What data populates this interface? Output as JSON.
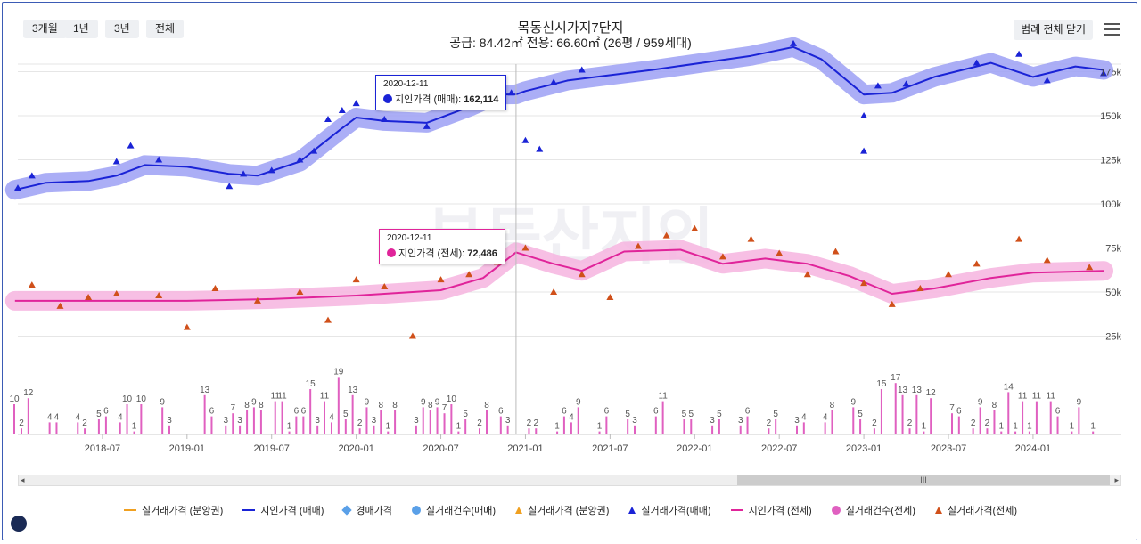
{
  "range_buttons": [
    "3개월",
    "1년",
    "3년",
    "전체"
  ],
  "title": {
    "main": "목동신시가지7단지",
    "sub": "공급: 84.42㎡ 전용: 66.60㎡ (26평 / 959세대)"
  },
  "legend_close_label": "범례 전체 닫기",
  "watermark": "부동산지인",
  "tooltips": [
    {
      "date": "2020-12-11",
      "label": "지인가격 (매매):",
      "value": "162,114",
      "color": "#1a23d6"
    },
    {
      "date": "2020-12-11",
      "label": "지인가격 (전세):",
      "value": "72,486",
      "color": "#e0249a"
    }
  ],
  "legend": [
    {
      "label": "실거래가격 (분양권)",
      "marker": "line",
      "color": "#f0a020"
    },
    {
      "label": "지인가격 (매매)",
      "marker": "line",
      "color": "#1a23d6"
    },
    {
      "label": "경매가격",
      "marker": "diamond",
      "color": "#5aa0e8"
    },
    {
      "label": "실거래건수(매매)",
      "marker": "circle",
      "color": "#5aa0e8"
    },
    {
      "label": "실거래가격 (분양권)",
      "marker": "triangle",
      "color": "#f0a020"
    },
    {
      "label": "실거래가격(매매)",
      "marker": "triangle",
      "color": "#1a23d6"
    },
    {
      "label": "지인가격 (전세)",
      "marker": "line",
      "color": "#e0249a"
    },
    {
      "label": "실거래건수(전세)",
      "marker": "circle",
      "color": "#e060c0"
    },
    {
      "label": "실거래가격(전세)",
      "marker": "triangle",
      "color": "#d0501a"
    }
  ],
  "chart_data": {
    "type": "line",
    "x_start": "2018-01",
    "x_end": "2024-06",
    "x_ticks": [
      "2018-07",
      "2019-01",
      "2019-07",
      "2020-01",
      "2020-07",
      "2021-01",
      "2021-07",
      "2022-01",
      "2022-07",
      "2023-01",
      "2023-07",
      "2024-01"
    ],
    "y_ticks": [
      25,
      50,
      75,
      100,
      125,
      150,
      175
    ],
    "y_tick_labels": [
      "25k",
      "50k",
      "75k",
      "100k",
      "125k",
      "150k",
      "175k"
    ],
    "ylim": [
      0,
      195
    ],
    "series": [
      {
        "name": "지인가격 (매매)",
        "color": "#1a23d6",
        "points": [
          [
            "2017-12-25",
            108
          ],
          [
            "2018-03",
            112
          ],
          [
            "2018-06",
            113
          ],
          [
            "2018-08",
            116
          ],
          [
            "2018-10",
            122
          ],
          [
            "2019-01",
            121
          ],
          [
            "2019-04",
            117
          ],
          [
            "2019-06",
            116
          ],
          [
            "2019-09",
            124
          ],
          [
            "2019-12",
            143
          ],
          [
            "2020-01",
            149
          ],
          [
            "2020-03",
            147
          ],
          [
            "2020-06",
            146
          ],
          [
            "2020-09",
            155
          ],
          [
            "2020-11",
            162
          ],
          [
            "2020-12-11",
            162.1
          ],
          [
            "2021-01",
            164
          ],
          [
            "2021-04",
            170
          ],
          [
            "2021-10",
            176
          ],
          [
            "2022-05",
            184
          ],
          [
            "2022-08",
            189
          ],
          [
            "2022-10",
            182
          ],
          [
            "2023-01",
            162
          ],
          [
            "2023-03",
            163
          ],
          [
            "2023-06",
            172
          ],
          [
            "2023-10",
            180
          ],
          [
            "2024-01",
            172
          ],
          [
            "2024-04",
            178
          ],
          [
            "2024-06",
            176
          ]
        ]
      },
      {
        "name": "지인가격 (전세)",
        "color": "#e0249a",
        "points": [
          [
            "2017-12-25",
            45
          ],
          [
            "2018-06",
            45
          ],
          [
            "2019-01",
            45
          ],
          [
            "2019-07",
            46
          ],
          [
            "2020-01",
            48
          ],
          [
            "2020-07",
            51
          ],
          [
            "2020-10",
            58
          ],
          [
            "2020-12-11",
            72.5
          ],
          [
            "2021-03",
            66
          ],
          [
            "2021-05",
            62
          ],
          [
            "2021-08",
            73
          ],
          [
            "2021-12",
            74
          ],
          [
            "2022-03",
            66
          ],
          [
            "2022-06",
            69
          ],
          [
            "2022-09",
            66
          ],
          [
            "2022-12",
            59
          ],
          [
            "2023-03",
            49
          ],
          [
            "2023-06",
            52
          ],
          [
            "2023-10",
            58
          ],
          [
            "2024-01",
            61
          ],
          [
            "2024-06",
            62
          ]
        ]
      },
      {
        "name": "실거래가격(매매)",
        "color": "#1a23d6",
        "points": [
          [
            "2018-01",
            109
          ],
          [
            "2018-02",
            116
          ],
          [
            "2018-08",
            124
          ],
          [
            "2018-09",
            133
          ],
          [
            "2018-11",
            125
          ],
          [
            "2019-04",
            110
          ],
          [
            "2019-05",
            117
          ],
          [
            "2019-07",
            119
          ],
          [
            "2019-09",
            125
          ],
          [
            "2019-10",
            130
          ],
          [
            "2019-11",
            148
          ],
          [
            "2019-12",
            153
          ],
          [
            "2020-01",
            157
          ],
          [
            "2020-03",
            148
          ],
          [
            "2020-06",
            144
          ],
          [
            "2020-08",
            157
          ],
          [
            "2020-09",
            160
          ],
          [
            "2020-11",
            165
          ],
          [
            "2020-12",
            163
          ],
          [
            "2021-01",
            136
          ],
          [
            "2021-02",
            131
          ],
          [
            "2021-03",
            169
          ],
          [
            "2021-05",
            176
          ],
          [
            "2022-08",
            191
          ],
          [
            "2023-01",
            150
          ],
          [
            "2023-01",
            130
          ],
          [
            "2023-02",
            167
          ],
          [
            "2023-04",
            168
          ],
          [
            "2023-09",
            180
          ],
          [
            "2023-12",
            185
          ],
          [
            "2024-02",
            170
          ],
          [
            "2024-06",
            174
          ]
        ]
      },
      {
        "name": "실거래가격(전세)",
        "color": "#d0501a",
        "points": [
          [
            "2018-02",
            54
          ],
          [
            "2018-04",
            42
          ],
          [
            "2018-06",
            47
          ],
          [
            "2018-08",
            49
          ],
          [
            "2018-11",
            48
          ],
          [
            "2019-01",
            30
          ],
          [
            "2019-03",
            52
          ],
          [
            "2019-06",
            45
          ],
          [
            "2019-09",
            50
          ],
          [
            "2019-11",
            34
          ],
          [
            "2020-01",
            57
          ],
          [
            "2020-03",
            53
          ],
          [
            "2020-05",
            25
          ],
          [
            "2020-07",
            57
          ],
          [
            "2020-09",
            60
          ],
          [
            "2020-11",
            67
          ],
          [
            "2021-01",
            75
          ],
          [
            "2021-03",
            50
          ],
          [
            "2021-05",
            60
          ],
          [
            "2021-07",
            47
          ],
          [
            "2021-09",
            76
          ],
          [
            "2021-11",
            82
          ],
          [
            "2022-01",
            86
          ],
          [
            "2022-03",
            70
          ],
          [
            "2022-05",
            80
          ],
          [
            "2022-07",
            72
          ],
          [
            "2022-09",
            60
          ],
          [
            "2022-11",
            73
          ],
          [
            "2023-01",
            55
          ],
          [
            "2023-03",
            43
          ],
          [
            "2023-05",
            52
          ],
          [
            "2023-07",
            60
          ],
          [
            "2023-09",
            66
          ],
          [
            "2023-12",
            80
          ],
          [
            "2024-02",
            68
          ],
          [
            "2024-05",
            64
          ]
        ]
      }
    ],
    "transaction_counts": {
      "labels": [
        [
          "2018-01",
          "10"
        ],
        [
          "2018-01",
          "2"
        ],
        [
          "2018-02",
          "12"
        ],
        [
          "2018-03",
          "4"
        ],
        [
          "2018-04",
          "4"
        ],
        [
          "2018-05",
          "4"
        ],
        [
          "2018-06",
          "2"
        ],
        [
          "2018-07",
          "6"
        ],
        [
          "2018-07",
          "5"
        ],
        [
          "2018-08",
          "4"
        ],
        [
          "2018-09",
          "10"
        ],
        [
          "2018-09",
          "1"
        ],
        [
          "2018-10",
          "10"
        ],
        [
          "2018-11",
          "9"
        ],
        [
          "2018-12",
          "3"
        ],
        [
          "2019-02",
          "13"
        ],
        [
          "2019-03",
          "6"
        ],
        [
          "2019-04",
          "7"
        ],
        [
          "2019-04",
          "3"
        ],
        [
          "2019-05",
          "8"
        ],
        [
          "2019-05",
          "3"
        ],
        [
          "2019-06",
          "8"
        ],
        [
          "2019-06",
          "9"
        ],
        [
          "2019-07",
          "11"
        ],
        [
          "2019-08",
          "11"
        ],
        [
          "2019-08",
          "1"
        ],
        [
          "2019-09",
          "6"
        ],
        [
          "2019-09",
          "6"
        ],
        [
          "2019-10",
          "15"
        ],
        [
          "2019-10",
          "3"
        ],
        [
          "2019-11",
          "11"
        ],
        [
          "2019-11",
          "4"
        ],
        [
          "2019-12",
          "19"
        ],
        [
          "2019-12",
          "5"
        ],
        [
          "2020-01",
          "13"
        ],
        [
          "2020-01",
          "2"
        ],
        [
          "2020-02",
          "9"
        ],
        [
          "2020-02",
          "3"
        ],
        [
          "2020-03",
          "8"
        ],
        [
          "2020-03",
          "1"
        ],
        [
          "2020-04",
          "8"
        ],
        [
          "2020-05",
          "3"
        ],
        [
          "2020-06",
          "9"
        ],
        [
          "2020-06",
          "8"
        ],
        [
          "2020-07",
          "9"
        ],
        [
          "2020-07",
          "7"
        ],
        [
          "2020-08",
          "10"
        ],
        [
          "2020-08",
          "1"
        ],
        [
          "2020-09",
          "5"
        ],
        [
          "2020-10",
          "8"
        ],
        [
          "2020-10",
          "2"
        ],
        [
          "2020-11",
          "6"
        ],
        [
          "2020-12",
          "3"
        ],
        [
          "2021-01",
          "2"
        ],
        [
          "2021-02",
          "2"
        ],
        [
          "2021-03",
          "1"
        ],
        [
          "2021-04",
          "6"
        ],
        [
          "2021-04",
          "4"
        ],
        [
          "2021-05",
          "9"
        ],
        [
          "2021-06",
          "1"
        ],
        [
          "2021-07",
          "6"
        ],
        [
          "2021-08",
          "5"
        ],
        [
          "2021-09",
          "3"
        ],
        [
          "2021-10",
          "6"
        ],
        [
          "2021-11",
          "11"
        ],
        [
          "2021-12",
          "5"
        ],
        [
          "2022-01",
          "5"
        ],
        [
          "2022-02",
          "3"
        ],
        [
          "2022-03",
          "5"
        ],
        [
          "2022-04",
          "3"
        ],
        [
          "2022-05",
          "6"
        ],
        [
          "2022-06",
          "2"
        ],
        [
          "2022-07",
          "5"
        ],
        [
          "2022-08",
          "3"
        ],
        [
          "2022-09",
          "4"
        ],
        [
          "2022-10",
          "4"
        ],
        [
          "2022-11",
          "8"
        ],
        [
          "2022-12",
          "9"
        ],
        [
          "2023-01",
          "5"
        ],
        [
          "2023-02",
          "15"
        ],
        [
          "2023-02",
          "2"
        ],
        [
          "2023-03",
          "17"
        ],
        [
          "2023-04",
          "13"
        ],
        [
          "2023-04",
          "2"
        ],
        [
          "2023-05",
          "13"
        ],
        [
          "2023-05",
          "1"
        ],
        [
          "2023-06",
          "12"
        ],
        [
          "2023-07",
          "7"
        ],
        [
          "2023-08",
          "6"
        ],
        [
          "2023-09",
          "9"
        ],
        [
          "2023-09",
          "2"
        ],
        [
          "2023-10",
          "8"
        ],
        [
          "2023-10",
          "2"
        ],
        [
          "2023-11",
          "14"
        ],
        [
          "2023-11",
          "1"
        ],
        [
          "2023-12",
          "11"
        ],
        [
          "2023-12",
          "1"
        ],
        [
          "2024-01",
          "11"
        ],
        [
          "2024-01",
          "1"
        ],
        [
          "2024-02",
          "11"
        ],
        [
          "2024-03",
          "6"
        ],
        [
          "2024-04",
          "9"
        ],
        [
          "2024-04",
          "1"
        ],
        [
          "2024-05",
          "1"
        ]
      ]
    }
  }
}
